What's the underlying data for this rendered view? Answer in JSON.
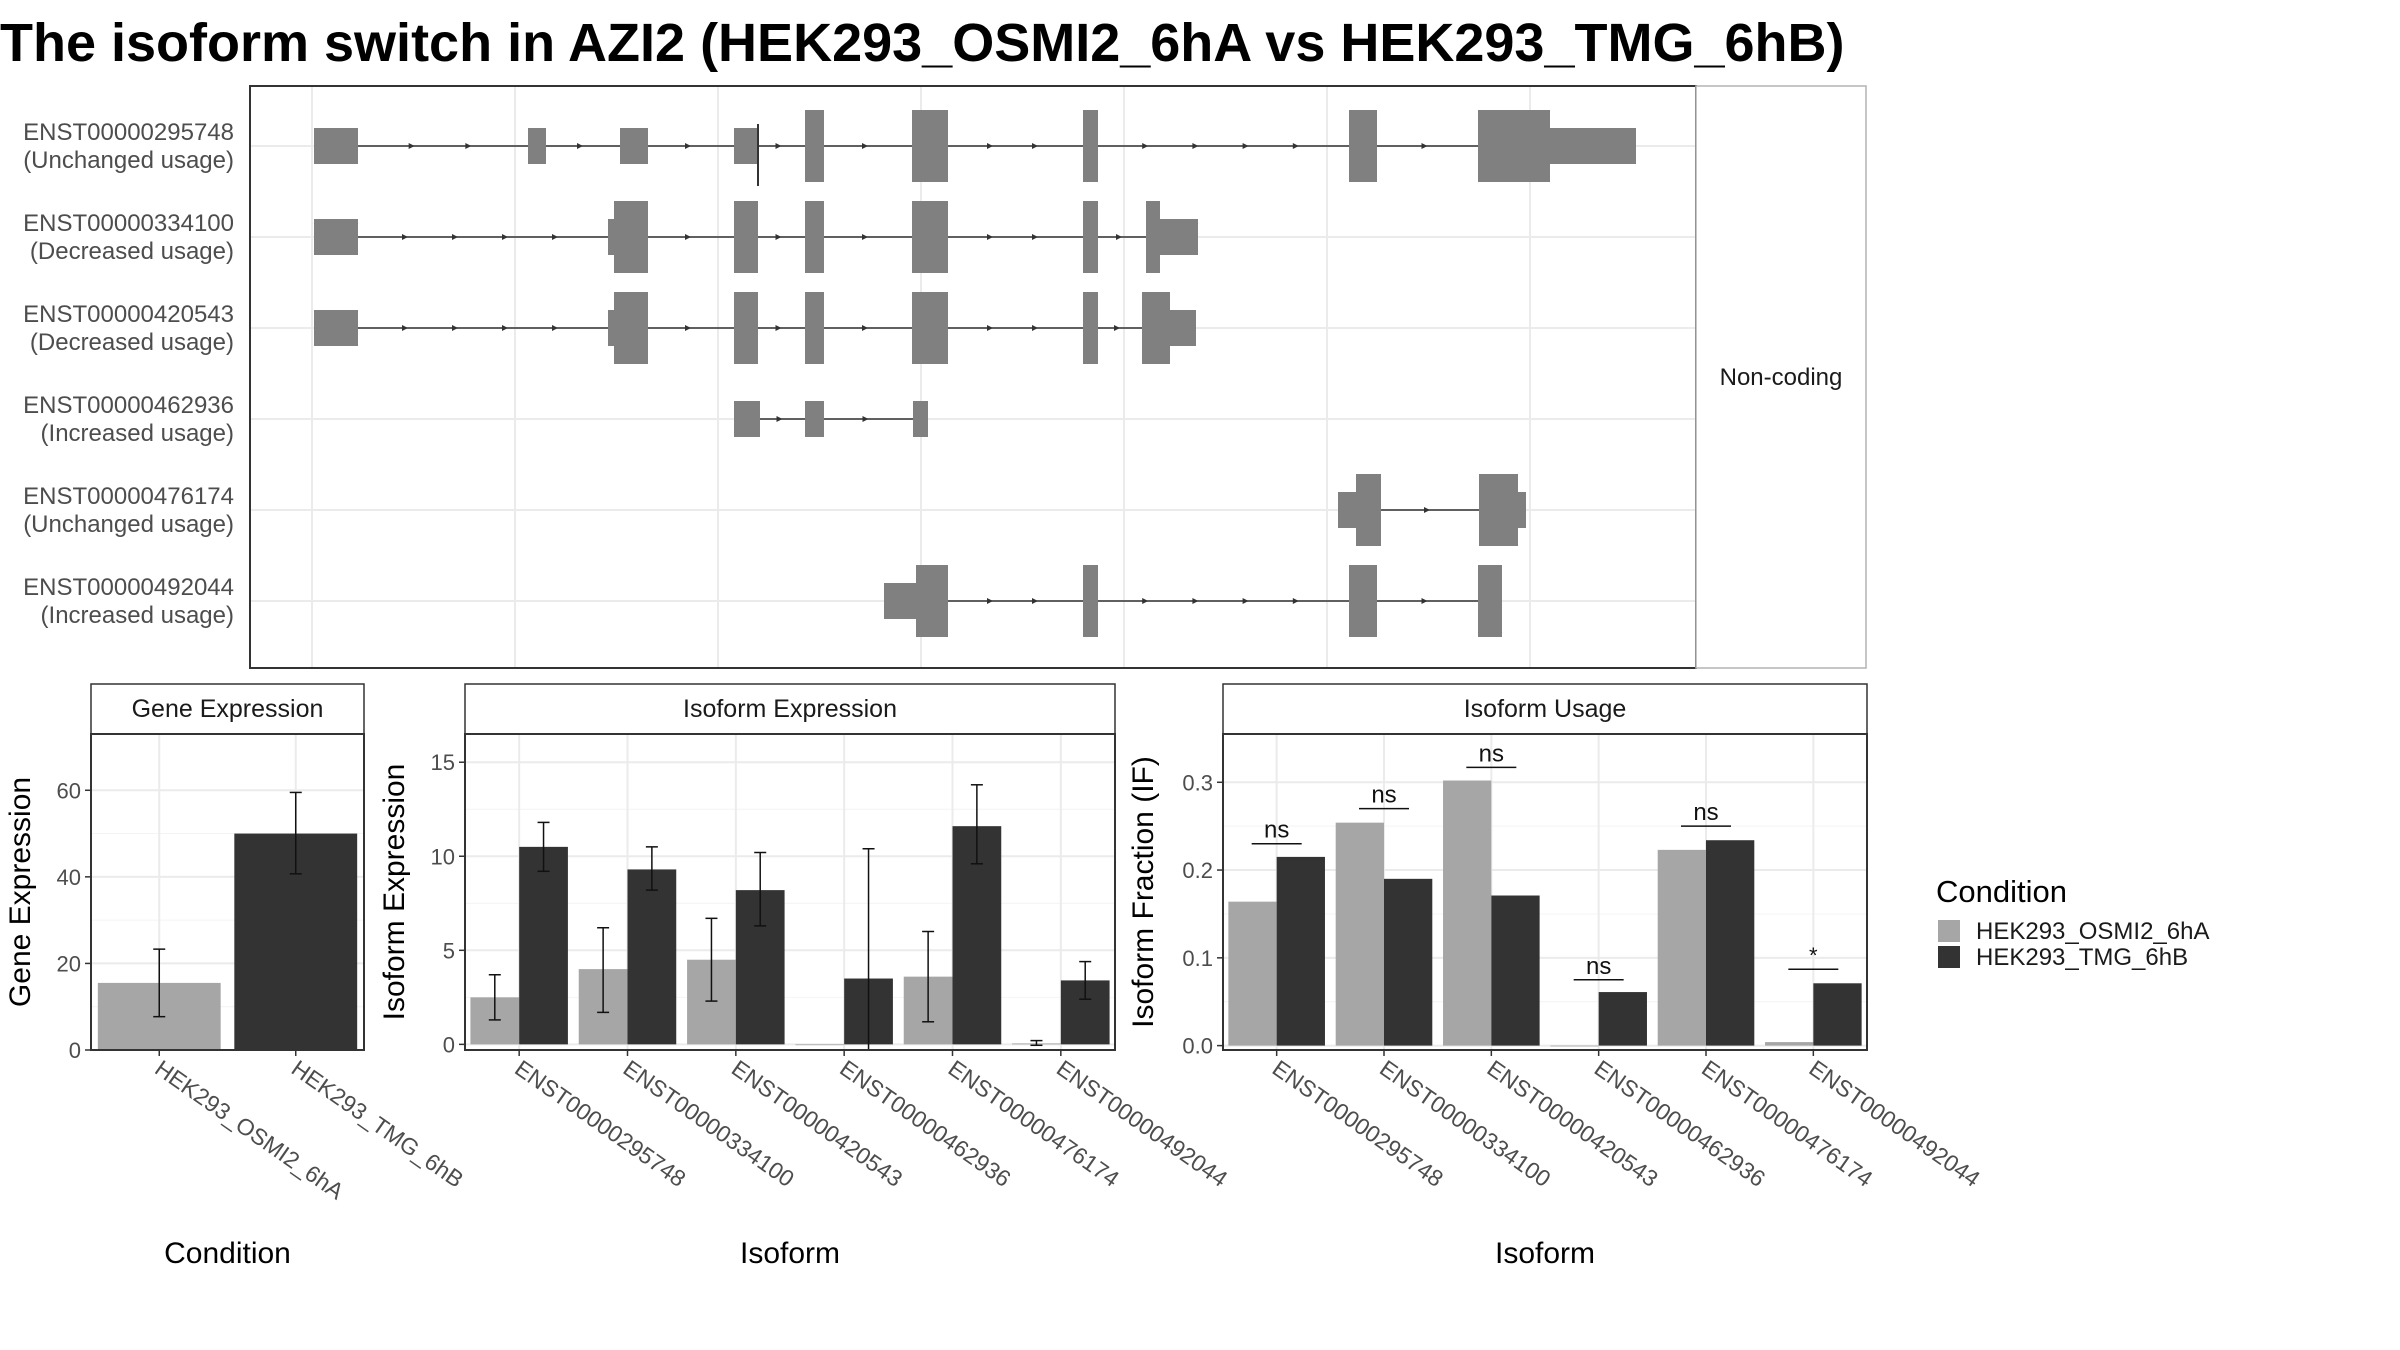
{
  "title": "The isoform switch in AZI2 (HEK293_OSMI2_6hA vs HEK293_TMG_6hB)",
  "colors": {
    "condition_a": "#a6a6a6",
    "condition_b": "#333333",
    "exon": "#808080",
    "grid": "#ebebeb",
    "strip_bg": "#ffffff",
    "panel_border": "#333333"
  },
  "chart_data": [
    {
      "type": "gene_structure",
      "facet_label": "Non-coding",
      "isoforms": [
        {
          "id": "ENST00000295748",
          "usage": "(Unchanged usage)"
        },
        {
          "id": "ENST00000334100",
          "usage": "(Decreased usage)"
        },
        {
          "id": "ENST00000420543",
          "usage": "(Decreased usage)"
        },
        {
          "id": "ENST00000462936",
          "usage": "(Increased usage)"
        },
        {
          "id": "ENST00000476174",
          "usage": "(Unchanged usage)"
        },
        {
          "id": "ENST00000492044",
          "usage": "(Increased usage)"
        }
      ]
    },
    {
      "type": "bar",
      "strip": "Gene Expression",
      "xlabel": "Condition",
      "ylabel": "Gene Expression",
      "ylim": [
        0,
        73
      ],
      "yticks": [
        0,
        20,
        40,
        60
      ],
      "categories": [
        "HEK293_OSMI2_6hA",
        "HEK293_TMG_6hB"
      ],
      "series": [
        {
          "values": [
            15.5,
            50
          ],
          "lower": [
            7.7,
            40.7
          ],
          "upper": [
            23.3,
            59.5
          ]
        }
      ]
    },
    {
      "type": "bar",
      "strip": "Isoform Expression",
      "xlabel": "Isoform",
      "ylabel": "Isoform Expression",
      "ylim": [
        -0.3,
        16.5
      ],
      "yticks": [
        0,
        5,
        10,
        15
      ],
      "categories": [
        "ENST00000295748",
        "ENST00000334100",
        "ENST00000420543",
        "ENST00000462936",
        "ENST00000476174",
        "ENST00000492044"
      ],
      "series": [
        {
          "name": "HEK293_OSMI2_6hA",
          "values": [
            2.5,
            4.0,
            4.5,
            0.0,
            3.6,
            0.05
          ],
          "lower": [
            1.3,
            1.7,
            2.3,
            0.0,
            1.2,
            -0.05
          ],
          "upper": [
            3.7,
            6.2,
            6.7,
            0.0,
            6.0,
            0.2
          ]
        },
        {
          "name": "HEK293_TMG_6hB",
          "values": [
            10.5,
            9.3,
            8.2,
            3.5,
            11.6,
            3.4
          ],
          "lower": [
            9.2,
            8.2,
            6.3,
            -0.3,
            9.6,
            2.4
          ],
          "upper": [
            11.8,
            10.5,
            10.2,
            10.4,
            13.8,
            4.4
          ]
        }
      ]
    },
    {
      "type": "bar",
      "strip": "Isoform Usage",
      "xlabel": "Isoform",
      "ylabel": "Isoform Fraction (IF)",
      "ylim": [
        -0.005,
        0.355
      ],
      "yticks": [
        0.0,
        0.1,
        0.2,
        0.3
      ],
      "ytick_labels": [
        "0.0",
        "0.1",
        "0.2",
        "0.3"
      ],
      "categories": [
        "ENST00000295748",
        "ENST00000334100",
        "ENST00000420543",
        "ENST00000462936",
        "ENST00000476174",
        "ENST00000492044"
      ],
      "series": [
        {
          "name": "HEK293_OSMI2_6hA",
          "values": [
            0.164,
            0.254,
            0.302,
            0.0,
            0.223,
            0.004
          ]
        },
        {
          "name": "HEK293_TMG_6hB",
          "values": [
            0.215,
            0.19,
            0.171,
            0.061,
            0.234,
            0.071
          ]
        }
      ],
      "significance": [
        "ns",
        "ns",
        "ns",
        "ns",
        "ns",
        "*"
      ],
      "significance_y": [
        0.23,
        0.27,
        0.317,
        0.075,
        0.25,
        0.087
      ]
    }
  ],
  "legend": {
    "title": "Condition",
    "items": [
      "HEK293_OSMI2_6hA",
      "HEK293_TMG_6hB"
    ]
  }
}
